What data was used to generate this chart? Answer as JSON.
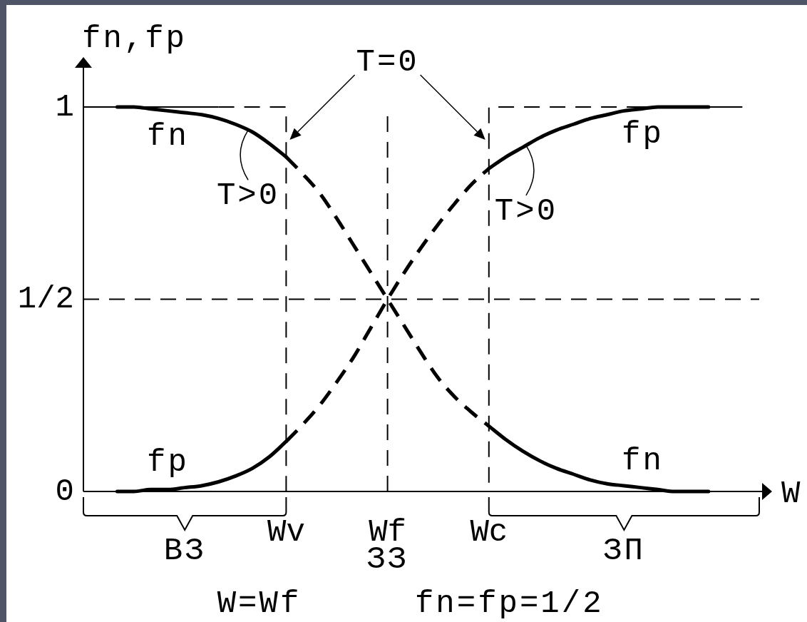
{
  "chart_data": {
    "type": "line",
    "xlabel": "W",
    "ylabel": "fn,fp",
    "categories": [
      null,
      null,
      null,
      null,
      null,
      null,
      null,
      null,
      null,
      null,
      null,
      null,
      "Wv",
      null,
      null,
      null,
      null,
      null,
      "Wf",
      null,
      null,
      null,
      null,
      null,
      "Wc",
      null,
      null,
      null,
      null,
      null,
      null,
      null,
      null,
      null,
      null,
      null,
      null,
      null,
      null,
      null,
      null
    ],
    "ylim": [
      0,
      1
    ],
    "yticks": [
      0,
      {
        "value": 0.5,
        "label": "1/2"
      },
      1
    ],
    "series": [
      {
        "name": "fn",
        "color": "#000000",
        "values": [
          null,
          null,
          1,
          1,
          0.995,
          0.99,
          0.985,
          0.98,
          0.97,
          0.955,
          0.935,
          0.905,
          0.87,
          null,
          null,
          null,
          null,
          null,
          null,
          null,
          null,
          null,
          null,
          null,
          null,
          null,
          null,
          null,
          null,
          null,
          null,
          null,
          null,
          null,
          null,
          null,
          null,
          null,
          null,
          null,
          null
        ]
      },
      {
        "line_style": "dashed",
        "color": "#000000",
        "values": [
          null,
          null,
          null,
          null,
          null,
          null,
          null,
          null,
          null,
          null,
          null,
          null,
          0.87,
          0.825,
          0.775,
          0.71,
          0.64,
          0.57,
          0.5,
          0.43,
          0.36,
          0.295,
          0.245,
          0.205,
          0.17,
          null,
          null,
          null,
          null,
          null,
          null,
          null,
          null,
          null,
          null,
          null,
          null,
          null,
          null,
          null,
          null
        ]
      },
      {
        "name": "fn",
        "color": "#000000",
        "values": [
          null,
          null,
          null,
          null,
          null,
          null,
          null,
          null,
          null,
          null,
          null,
          null,
          null,
          null,
          null,
          null,
          null,
          null,
          null,
          null,
          null,
          null,
          null,
          null,
          0.17,
          0.135,
          0.105,
          0.08,
          0.06,
          0.045,
          0.03,
          0.02,
          0.015,
          0.01,
          0.005,
          0,
          0,
          0,
          null,
          null,
          null
        ]
      },
      {
        "name": "fp",
        "color": "#000000",
        "values": [
          null,
          null,
          0,
          0,
          0.005,
          0.005,
          0.01,
          0.015,
          0.025,
          0.04,
          0.06,
          0.09,
          0.13,
          null,
          null,
          null,
          null,
          null,
          null,
          null,
          null,
          null,
          null,
          null,
          null,
          null,
          null,
          null,
          null,
          null,
          null,
          null,
          null,
          null,
          null,
          null,
          null,
          null,
          null,
          null,
          null
        ]
      },
      {
        "line_style": "dashed",
        "color": "#000000",
        "values": [
          null,
          null,
          null,
          null,
          null,
          null,
          null,
          null,
          null,
          null,
          null,
          null,
          0.13,
          0.175,
          0.225,
          0.285,
          0.35,
          0.425,
          0.5,
          0.57,
          0.635,
          0.695,
          0.75,
          0.8,
          0.84,
          null,
          null,
          null,
          null,
          null,
          null,
          null,
          null,
          null,
          null,
          null,
          null,
          null,
          null,
          null,
          null
        ]
      },
      {
        "name": "fp",
        "color": "#000000",
        "values": [
          null,
          null,
          null,
          null,
          null,
          null,
          null,
          null,
          null,
          null,
          null,
          null,
          null,
          null,
          null,
          null,
          null,
          null,
          null,
          null,
          null,
          null,
          null,
          null,
          0.84,
          0.87,
          0.895,
          0.92,
          0.94,
          0.955,
          0.97,
          0.98,
          0.99,
          0.995,
          1,
          1,
          1,
          1,
          null,
          null,
          null
        ]
      },
      {
        "type": "step",
        "color": "#000000",
        "values": [
          1,
          1,
          1,
          1,
          1,
          1,
          1,
          1,
          1,
          null,
          null,
          null,
          null,
          null,
          null,
          null,
          null,
          null,
          null,
          null,
          null,
          null,
          null,
          null,
          null,
          null,
          null,
          null,
          null,
          null,
          null,
          null,
          null,
          null,
          null,
          null,
          null,
          null,
          null,
          null,
          null
        ]
      },
      {
        "type": "step",
        "line_style": "dashed",
        "color": "#000000",
        "values": [
          null,
          null,
          null,
          null,
          null,
          null,
          null,
          null,
          1,
          1,
          1,
          1,
          0,
          null,
          null,
          null,
          null,
          null,
          null,
          null,
          null,
          null,
          null,
          null,
          null,
          null,
          null,
          null,
          null,
          null,
          null,
          null,
          null,
          null,
          null,
          null,
          null,
          null,
          null,
          null,
          null
        ]
      },
      {
        "type": "step",
        "line_style": "dashed",
        "color": "#000000",
        "values": [
          null,
          null,
          null,
          null,
          null,
          null,
          null,
          null,
          null,
          null,
          null,
          null,
          null,
          null,
          null,
          null,
          null,
          null,
          null,
          null,
          null,
          null,
          null,
          0,
          1,
          1,
          1,
          1,
          1,
          1,
          1,
          1,
          1,
          1,
          null,
          null,
          null,
          null,
          null,
          null,
          null
        ]
      },
      {
        "type": "step",
        "color": "#000000",
        "values": [
          null,
          null,
          null,
          null,
          null,
          null,
          null,
          null,
          null,
          null,
          null,
          null,
          null,
          null,
          null,
          null,
          null,
          null,
          null,
          null,
          null,
          null,
          null,
          null,
          null,
          null,
          null,
          null,
          null,
          null,
          null,
          null,
          null,
          1,
          1,
          1,
          1,
          1,
          1,
          1,
          null
        ]
      }
    ],
    "ref_lines": [
      {
        "axis": "x",
        "value": "Wf",
        "line_style": "dashed"
      },
      {
        "axis": "y",
        "value": 0.5,
        "line_style": "dashed"
      }
    ],
    "annotations": [
      "T=0",
      {
        "text": "T>0",
        "y": 0.94
      },
      {
        "text": "T>0",
        "y": 0.9
      },
      "ВЗ",
      "ЗЗ",
      "ЗП",
      "W=Wf",
      "fn=fp=1/2"
    ]
  }
}
